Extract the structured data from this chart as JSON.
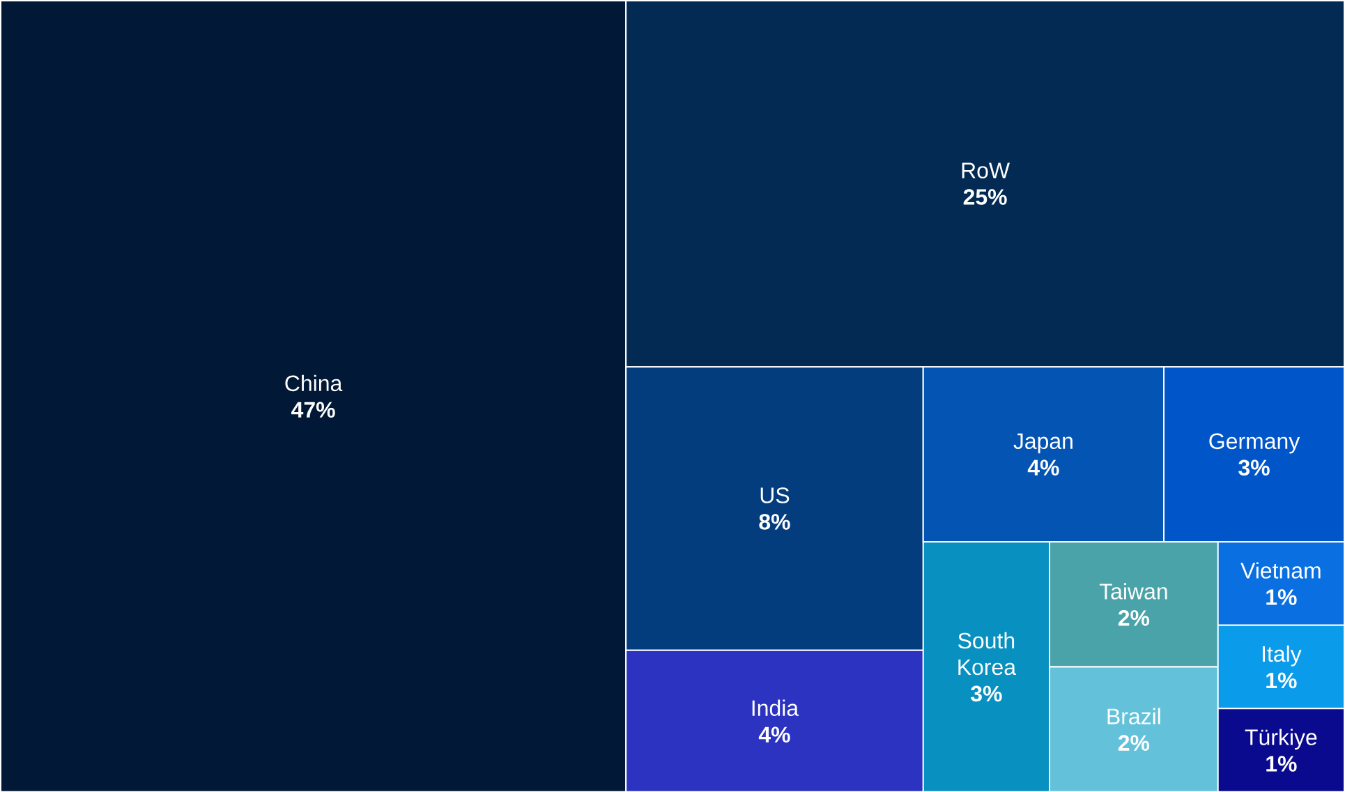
{
  "chart_data": {
    "type": "other",
    "categories": [
      "China",
      "RoW",
      "US",
      "India",
      "Japan",
      "Germany",
      "South Korea",
      "Taiwan",
      "Brazil",
      "Vietnam",
      "Italy",
      "Türkiye"
    ],
    "values": [
      47,
      25,
      8,
      4,
      4,
      3,
      3,
      2,
      2,
      1,
      1,
      1
    ],
    "value_labels": [
      "47%",
      "25%",
      "8%",
      "4%",
      "4%",
      "3%",
      "3%",
      "2%",
      "2%",
      "1%",
      "1%",
      "1%"
    ],
    "colors": [
      "#011836",
      "#022a52",
      "#033d7e",
      "#2b33c0",
      "#0454b4",
      "#0056c8",
      "#0891c0",
      "#4aa3a8",
      "#63c2da",
      "#0a6fe0",
      "#0a9bea",
      "#0a0a8f"
    ]
  }
}
